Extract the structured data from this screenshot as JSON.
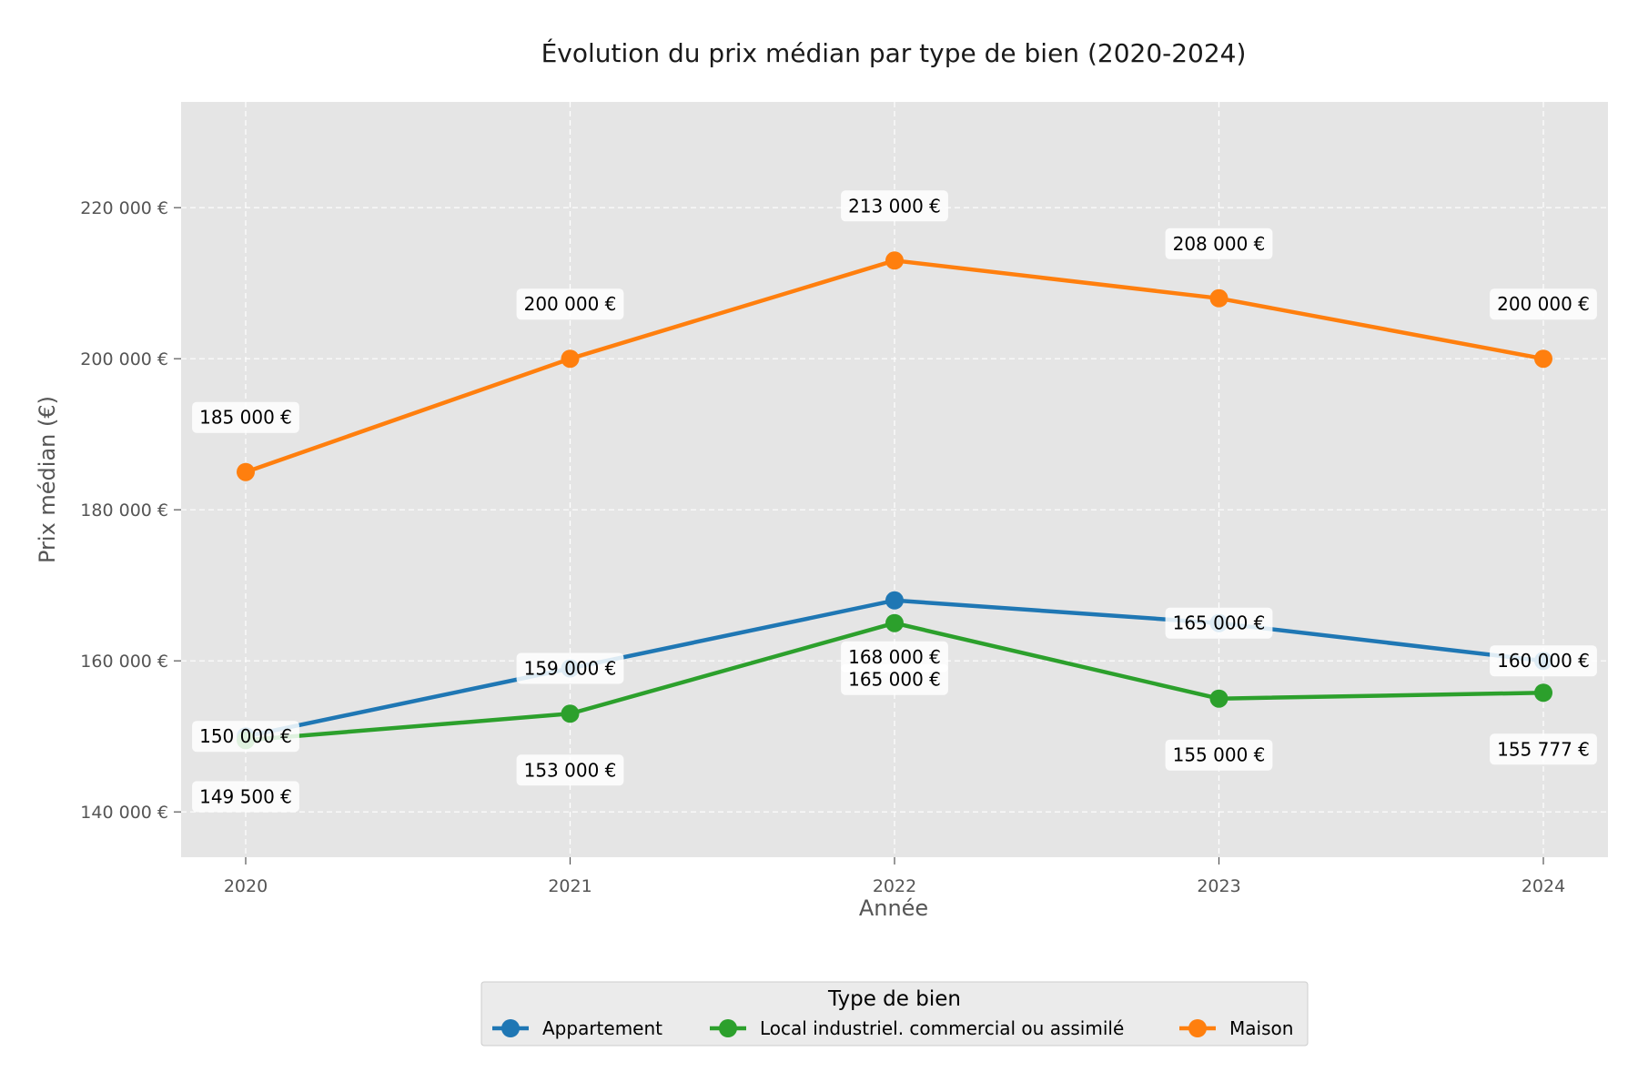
{
  "chart_data": {
    "type": "line",
    "title": "Évolution du prix médian par type de bien (2020-2024)",
    "xlabel": "Année",
    "ylabel": "Prix médian (€)",
    "x": [
      2020,
      2021,
      2022,
      2023,
      2024
    ],
    "x_tick_labels": [
      "2020",
      "2021",
      "2022",
      "2023",
      "2024"
    ],
    "ylim": [
      134000,
      234000
    ],
    "y_ticks": [
      140000,
      160000,
      180000,
      200000,
      220000
    ],
    "y_tick_labels": [
      "140 000 €",
      "160 000 €",
      "180 000 €",
      "200 000 €",
      "220 000 €"
    ],
    "grid": true,
    "legend": {
      "title": "Type de bien",
      "placement": "bottom-center"
    },
    "series": [
      {
        "name": "Appartement",
        "color": "#1f77b4",
        "values": [
          150000,
          159000,
          168000,
          165000,
          160000
        ],
        "labels": [
          "150 000 €",
          "159 000 €",
          "168 000 €",
          "165 000 €",
          "160 000 €"
        ],
        "label_positions": [
          "center",
          "center",
          "below",
          "center",
          "center"
        ]
      },
      {
        "name": "Local industriel. commercial ou assimilé",
        "color": "#2ca02c",
        "values": [
          149500,
          153000,
          165000,
          155000,
          155777
        ],
        "labels": [
          "149 500 €",
          "153 000 €",
          "165 000 €",
          "155 000 €",
          "155 777 €"
        ],
        "label_positions": [
          "below",
          "below",
          "below",
          "below",
          "below"
        ]
      },
      {
        "name": "Maison",
        "color": "#ff7f0e",
        "values": [
          185000,
          200000,
          213000,
          208000,
          200000
        ],
        "labels": [
          "185 000 €",
          "200 000 €",
          "213 000 €",
          "208 000 €",
          "200 000 €"
        ],
        "label_positions": [
          "above",
          "above",
          "above",
          "above",
          "above"
        ]
      }
    ]
  }
}
